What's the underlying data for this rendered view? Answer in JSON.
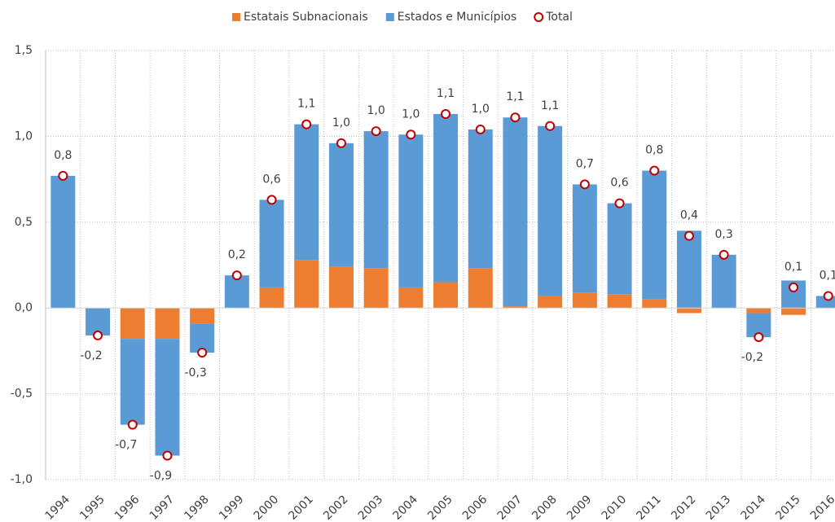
{
  "chart_data": {
    "type": "stacked-bar",
    "categories": [
      "1994",
      "1995",
      "1996",
      "1997",
      "1998",
      "1999",
      "2000",
      "2001",
      "2002",
      "2003",
      "2004",
      "2005",
      "2006",
      "2007",
      "2008",
      "2009",
      "2010",
      "2011",
      "2012",
      "2013",
      "2014",
      "2015",
      "2016"
    ],
    "series": [
      {
        "name": "Estatais Subnacionais",
        "color": "#ed7d31",
        "values": [
          0,
          0,
          -0.18,
          -0.18,
          -0.09,
          0,
          0.12,
          0.28,
          0.24,
          0.23,
          0.12,
          0.15,
          0.23,
          0.01,
          0.07,
          0.09,
          0.08,
          0.05,
          -0.03,
          0,
          -0.03,
          -0.04,
          0
        ]
      },
      {
        "name": "Estados e Municípios",
        "color": "#5b9bd5",
        "values": [
          0.77,
          -0.16,
          -0.5,
          -0.68,
          -0.17,
          0.19,
          0.51,
          0.79,
          0.72,
          0.8,
          0.89,
          0.98,
          0.81,
          1.1,
          0.99,
          0.63,
          0.53,
          0.75,
          0.45,
          0.31,
          -0.14,
          0.16,
          0.07
        ]
      },
      {
        "name": "Total",
        "color": "#c00000",
        "type": "marker",
        "values": [
          0.77,
          -0.16,
          -0.68,
          -0.86,
          -0.26,
          0.19,
          0.63,
          1.07,
          0.96,
          1.03,
          1.01,
          1.13,
          1.04,
          1.11,
          1.06,
          0.72,
          0.61,
          0.8,
          0.42,
          0.31,
          -0.17,
          0.12,
          0.07
        ],
        "value_labels": [
          "0,8",
          "-0,2",
          "-0,7",
          "-0,9",
          "-0,3",
          "0,2",
          "0,6",
          "1,1",
          "1,0",
          "1,0",
          "1,0",
          "1,1",
          "1,0",
          "1,1",
          "1,1",
          "0,7",
          "0,6",
          "0,8",
          "0,4",
          "0,3",
          "-0,2",
          "0,1",
          "0,1"
        ]
      }
    ],
    "ylim": [
      -1.0,
      1.5
    ],
    "yticks": [
      {
        "value": -1.0,
        "label": "-1,0"
      },
      {
        "value": -0.5,
        "label": "-0,5"
      },
      {
        "value": 0,
        "label": "0,0"
      },
      {
        "value": 0.5,
        "label": "0,5"
      },
      {
        "value": 1.0,
        "label": "1,0"
      },
      {
        "value": 1.5,
        "label": "1,5"
      }
    ],
    "grid": true,
    "legend": "top"
  }
}
